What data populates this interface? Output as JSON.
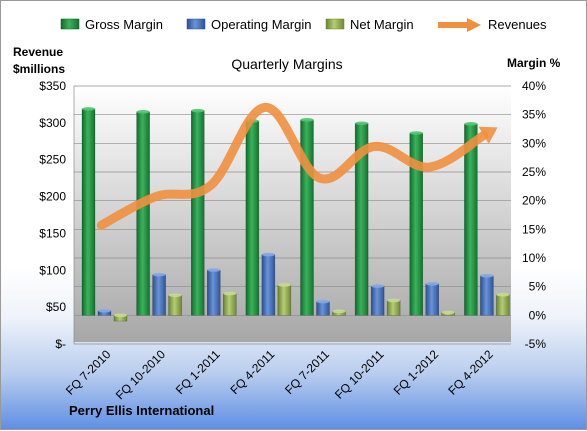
{
  "chart_data": {
    "type": "bar",
    "title": "Quarterly Margins",
    "company": "Perry Ellis International",
    "categories": [
      "FQ 7-2010",
      "FQ 10-2010",
      "FQ 1-2011",
      "FQ 4-2011",
      "FQ 7-2011",
      "FQ 10-2011",
      "FQ 1-2012",
      "FQ 4-2012"
    ],
    "y_left": {
      "label_line1": "Revenue",
      "label_line2": "$millions",
      "range": [
        0,
        350
      ],
      "ticks": [
        "$-",
        "$50",
        "$100",
        "$150",
        "$200",
        "$250",
        "$300",
        "$350"
      ]
    },
    "y_right": {
      "label": "Margin %",
      "range": [
        -5,
        40
      ],
      "ticks": [
        "-5%",
        "0%",
        "5%",
        "10%",
        "15%",
        "20%",
        "25%",
        "30%",
        "35%",
        "40%"
      ]
    },
    "legend_position": "top",
    "grid": true,
    "series": [
      {
        "name": "Gross Margin",
        "axis": "right",
        "type": "bar",
        "color": "#2e9a4c",
        "values": [
          36,
          35.5,
          35.7,
          33.9,
          34.1,
          33.5,
          31.8,
          33.4
        ]
      },
      {
        "name": "Operating Margin",
        "axis": "right",
        "type": "bar",
        "color": "#4a73c2",
        "values": [
          0.8,
          7.1,
          7.9,
          10.6,
          2.4,
          5.1,
          5.5,
          6.9
        ]
      },
      {
        "name": "Net Margin",
        "axis": "right",
        "type": "bar",
        "color": "#93b050",
        "values": [
          -1,
          3.5,
          3.8,
          5.3,
          0.7,
          2.6,
          0.5,
          3.6
        ]
      },
      {
        "name": "Revenues",
        "axis": "left",
        "type": "line",
        "color": "#f0903f",
        "values": [
          161,
          200,
          215,
          321,
          225,
          268,
          240,
          283
        ]
      }
    ]
  }
}
